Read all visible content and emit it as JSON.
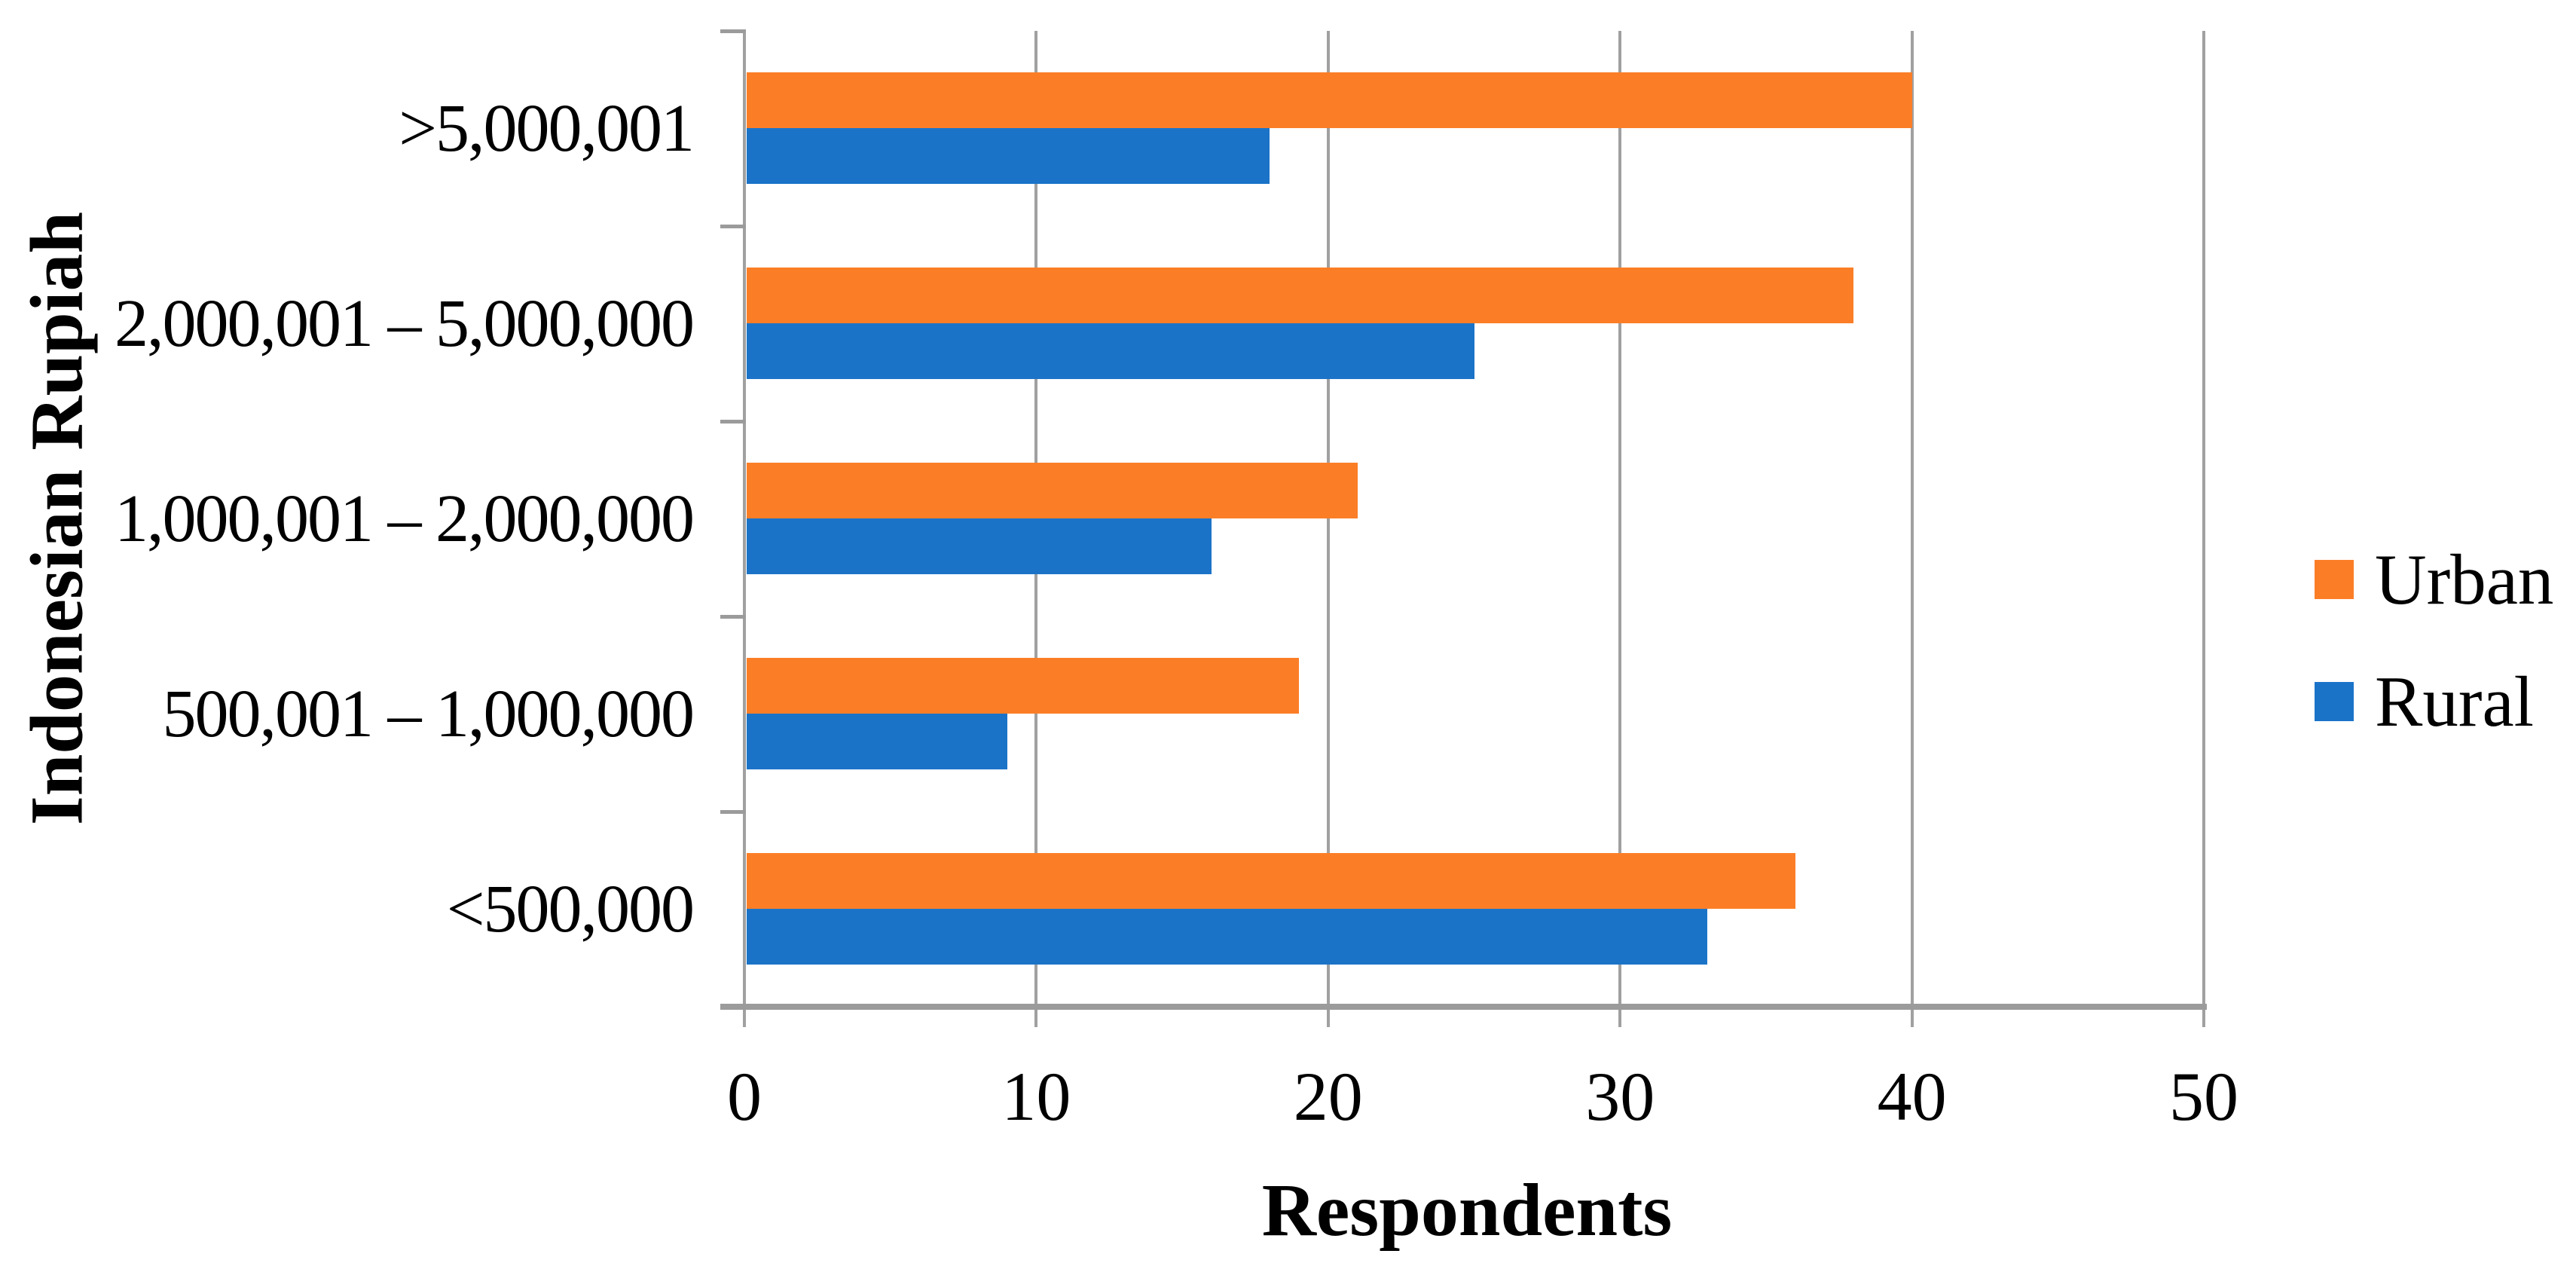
{
  "chart_data": {
    "type": "bar",
    "orientation": "horizontal",
    "title": "",
    "xlabel": "Respondents",
    "ylabel": "Indonesian Rupiah",
    "categories": [
      ">5,000,001",
      "2,000,001 – 5,000,000",
      "1,000,001 – 2,000,000",
      "500,001 – 1,000,000",
      "<500,000"
    ],
    "series": [
      {
        "name": "Urban",
        "color": "#FB7E27",
        "values": [
          40,
          38,
          21,
          19,
          36
        ]
      },
      {
        "name": "Rural",
        "color": "#1B73C8",
        "values": [
          18,
          25,
          16,
          9,
          33
        ]
      }
    ],
    "xlim": [
      0,
      50
    ],
    "xticks": [
      0,
      10,
      20,
      30,
      40,
      50
    ],
    "grid": true,
    "legend_position": "right",
    "colors": {
      "gridline": "#A0A0A0",
      "axis": "#9B9B9B",
      "text": "#000000",
      "background": "#FFFFFF"
    }
  }
}
